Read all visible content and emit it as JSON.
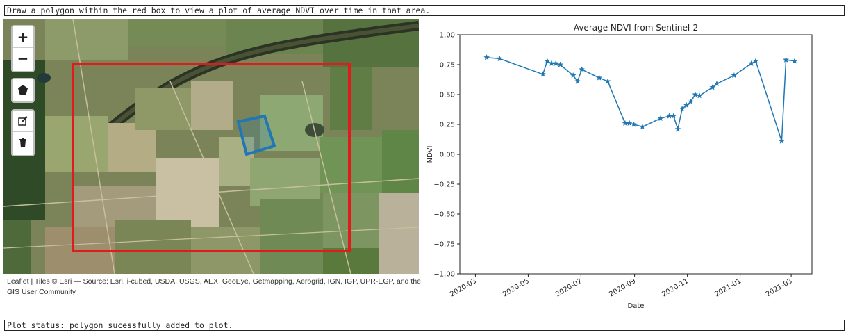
{
  "instructions": "Draw a polygon within the red box to view a plot of average NDVI over time in that area.",
  "map": {
    "zoom_in_label": "+",
    "zoom_out_label": "−",
    "attribution_link": "Leaflet",
    "attribution_rest": "| Tiles © Esri — Source: Esri, i-cubed, USDA, USGS, AEX, GeoEye, Getmapping, Aerogrid, IGN, IGP, UPR-EGP, and the GIS User Community",
    "bounds_color": "#e31a1c",
    "polygon_color": "#1f78b4"
  },
  "status": "Plot status: polygon sucessfully added to plot.",
  "chart_data": {
    "type": "line",
    "title": "Average NDVI from Sentinel-2",
    "xlabel": "Date",
    "ylabel": "NDVI",
    "ylim": [
      -1.0,
      1.0
    ],
    "xlim": [
      "2020-02-12",
      "2021-03-25"
    ],
    "yticks": [
      "1.00",
      "0.75",
      "0.50",
      "0.25",
      "0.00",
      "−0.25",
      "−0.50",
      "−0.75",
      "−1.00"
    ],
    "xticks": [
      "2020-03",
      "2020-05",
      "2020-07",
      "2020-09",
      "2020-11",
      "2021-01",
      "2021-03"
    ],
    "marker": "star",
    "color": "#1f77b4",
    "x": [
      "2020-03-14",
      "2020-03-29",
      "2020-05-18",
      "2020-05-23",
      "2020-05-28",
      "2020-06-02",
      "2020-06-07",
      "2020-06-22",
      "2020-06-27",
      "2020-07-02",
      "2020-07-22",
      "2020-08-01",
      "2020-08-21",
      "2020-08-26",
      "2020-08-31",
      "2020-09-10",
      "2020-10-01",
      "2020-10-11",
      "2020-10-16",
      "2020-10-21",
      "2020-10-26",
      "2020-10-31",
      "2020-11-05",
      "2020-11-10",
      "2020-11-15",
      "2020-11-30",
      "2020-12-05",
      "2020-12-25",
      "2021-01-14",
      "2021-01-19",
      "2021-02-18",
      "2021-02-23",
      "2021-03-05"
    ],
    "y": [
      0.81,
      0.8,
      0.67,
      0.78,
      0.76,
      0.76,
      0.75,
      0.66,
      0.61,
      0.71,
      0.64,
      0.61,
      0.26,
      0.26,
      0.25,
      0.23,
      0.3,
      0.32,
      0.32,
      0.21,
      0.38,
      0.41,
      0.44,
      0.5,
      0.49,
      0.56,
      0.59,
      0.66,
      0.76,
      0.78,
      0.11,
      0.79,
      0.78
    ]
  }
}
